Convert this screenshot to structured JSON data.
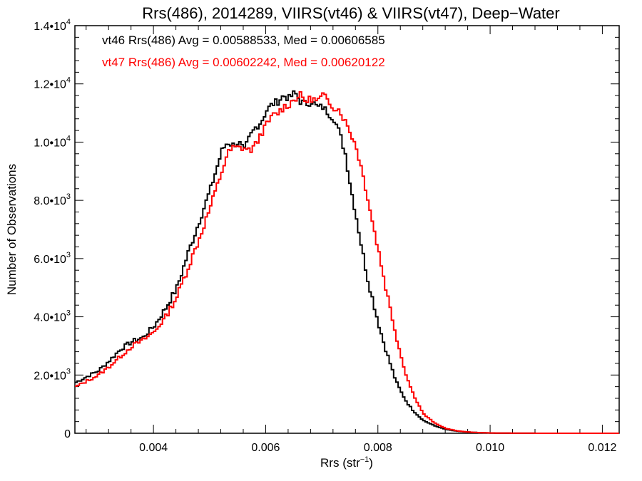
{
  "chart_data": {
    "type": "line",
    "title": "Rrs(486), 2014289, VIIRS(vt46) & VIIRS(vt47), Deep−Water",
    "xlabel": "Rrs (str",
    "xlabel_sup": "−1",
    "xlabel_end": ")",
    "ylabel": "Number of Observations",
    "xlim": [
      0.0026,
      0.0123
    ],
    "ylim": [
      0,
      14000
    ],
    "x_ticks": [
      {
        "value": 0.004,
        "label": "0.004"
      },
      {
        "value": 0.006,
        "label": "0.006"
      },
      {
        "value": 0.008,
        "label": "0.008"
      },
      {
        "value": 0.01,
        "label": "0.010"
      },
      {
        "value": 0.012,
        "label": "0.012"
      }
    ],
    "y_ticks": [
      {
        "value": 0,
        "mant": "0",
        "exp": ""
      },
      {
        "value": 2000,
        "mant": "2.0•10",
        "exp": "3"
      },
      {
        "value": 4000,
        "mant": "4.0•10",
        "exp": "3"
      },
      {
        "value": 6000,
        "mant": "6.0•10",
        "exp": "3"
      },
      {
        "value": 8000,
        "mant": "8.0•10",
        "exp": "3"
      },
      {
        "value": 10000,
        "mant": "1.0•10",
        "exp": "4"
      },
      {
        "value": 12000,
        "mant": "1.2•10",
        "exp": "4"
      },
      {
        "value": 14000,
        "mant": "1.4•10",
        "exp": "4"
      }
    ],
    "x": [
      0.0026,
      0.0028,
      0.003,
      0.0032,
      0.0034,
      0.0036,
      0.0038,
      0.004,
      0.0042,
      0.0044,
      0.0046,
      0.0048,
      0.005,
      0.0052,
      0.0053,
      0.0054,
      0.0055,
      0.0056,
      0.0057,
      0.0058,
      0.0059,
      0.006,
      0.0061,
      0.0062,
      0.0063,
      0.0064,
      0.0065,
      0.0066,
      0.0067,
      0.0068,
      0.0069,
      0.007,
      0.0071,
      0.0072,
      0.0073,
      0.0074,
      0.0075,
      0.0076,
      0.0077,
      0.0078,
      0.0079,
      0.008,
      0.0081,
      0.0082,
      0.0083,
      0.0084,
      0.0085,
      0.0086,
      0.0087,
      0.0088,
      0.009,
      0.0092,
      0.0094,
      0.0096,
      0.0098,
      0.01,
      0.0102,
      0.0104,
      0.0106,
      0.0108,
      0.011,
      0.0112,
      0.0114,
      0.0116,
      0.0118,
      0.012,
      0.0123
    ],
    "series": [
      {
        "name": "vt46",
        "color": "#000000",
        "values": [
          1750,
          1950,
          2150,
          2500,
          2900,
          3150,
          3300,
          3700,
          4300,
          5000,
          6200,
          7300,
          8400,
          9700,
          10000,
          9900,
          10000,
          9700,
          10200,
          10500,
          10700,
          11100,
          11300,
          11400,
          11600,
          11500,
          11700,
          11400,
          11300,
          11400,
          11200,
          11200,
          11000,
          10800,
          10300,
          9600,
          8400,
          7400,
          6300,
          5300,
          4500,
          3700,
          3000,
          2400,
          1800,
          1400,
          1050,
          800,
          600,
          430,
          250,
          130,
          70,
          40,
          20,
          10,
          5,
          3,
          2,
          1,
          0,
          0,
          0,
          0,
          0,
          0,
          0
        ]
      },
      {
        "name": "vt47",
        "color": "#ff0000",
        "values": [
          1600,
          1800,
          2000,
          2300,
          2650,
          3000,
          3200,
          3500,
          4000,
          4700,
          5700,
          6700,
          7800,
          9000,
          9600,
          9800,
          9800,
          9800,
          9700,
          9900,
          10300,
          10600,
          10900,
          11000,
          11200,
          11300,
          11500,
          11600,
          11400,
          11500,
          11400,
          11600,
          11400,
          11200,
          11100,
          10700,
          10300,
          9800,
          9000,
          8100,
          7100,
          6200,
          5200,
          4300,
          3400,
          2600,
          1900,
          1400,
          1000,
          650,
          340,
          160,
          80,
          40,
          20,
          10,
          6,
          3,
          2,
          1,
          0,
          0,
          0,
          0,
          0,
          0,
          0
        ]
      }
    ],
    "annotations": [
      {
        "text": "vt46 Rrs(486) Avg = 0.00588533, Med = 0.00606585",
        "color": "#000000"
      },
      {
        "text": "vt47 Rrs(486) Avg = 0.00602242, Med = 0.00620122",
        "color": "#ff0000"
      }
    ]
  }
}
